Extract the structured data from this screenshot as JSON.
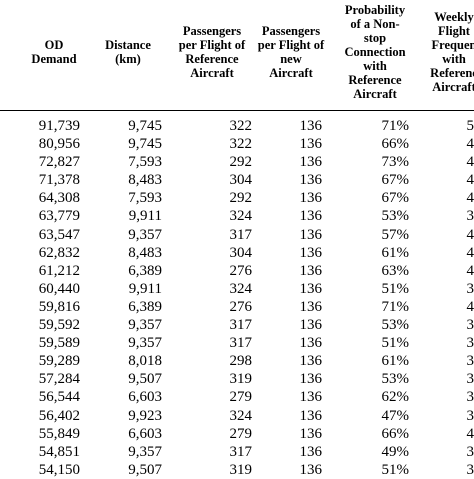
{
  "headers": [
    "OD\nDemand",
    "Distance\n(km)",
    "Passengers\nper Flight of\nReference\nAircraft",
    "Passengers\nper Flight of\nnew\nAircraft",
    "Probability\nof a Non-\nstop\nConnection\nwith\nReference\nAircraft",
    "Weekly\nFlight\nFrequen\nwith\nReferenc\nAircraft"
  ],
  "rows": [
    [
      "91,739",
      "9,745",
      "322",
      "136",
      "71%",
      "5"
    ],
    [
      "80,956",
      "9,745",
      "322",
      "136",
      "66%",
      "4"
    ],
    [
      "72,827",
      "7,593",
      "292",
      "136",
      "73%",
      "4"
    ],
    [
      "71,378",
      "8,483",
      "304",
      "136",
      "67%",
      "4"
    ],
    [
      "64,308",
      "7,593",
      "292",
      "136",
      "67%",
      "4"
    ],
    [
      "63,779",
      "9,911",
      "324",
      "136",
      "53%",
      "3"
    ],
    [
      "63,547",
      "9,357",
      "317",
      "136",
      "57%",
      "4"
    ],
    [
      "62,832",
      "8,483",
      "304",
      "136",
      "61%",
      "4"
    ],
    [
      "61,212",
      "6,389",
      "276",
      "136",
      "63%",
      "4"
    ],
    [
      "60,440",
      "9,911",
      "324",
      "136",
      "51%",
      "3"
    ],
    [
      "59,816",
      "6,389",
      "276",
      "136",
      "71%",
      "4"
    ],
    [
      "59,592",
      "9,357",
      "317",
      "136",
      "53%",
      "3"
    ],
    [
      "59,589",
      "9,357",
      "317",
      "136",
      "51%",
      "3"
    ],
    [
      "59,289",
      "8,018",
      "298",
      "136",
      "61%",
      "3"
    ],
    [
      "57,284",
      "9,507",
      "319",
      "136",
      "53%",
      "3"
    ],
    [
      "56,544",
      "6,603",
      "279",
      "136",
      "62%",
      "3"
    ],
    [
      "56,402",
      "9,923",
      "324",
      "136",
      "47%",
      "3"
    ],
    [
      "55,849",
      "6,603",
      "279",
      "136",
      "66%",
      "4"
    ],
    [
      "54,851",
      "9,357",
      "317",
      "136",
      "49%",
      "3"
    ],
    [
      "54,150",
      "9,507",
      "319",
      "136",
      "51%",
      "3"
    ]
  ]
}
